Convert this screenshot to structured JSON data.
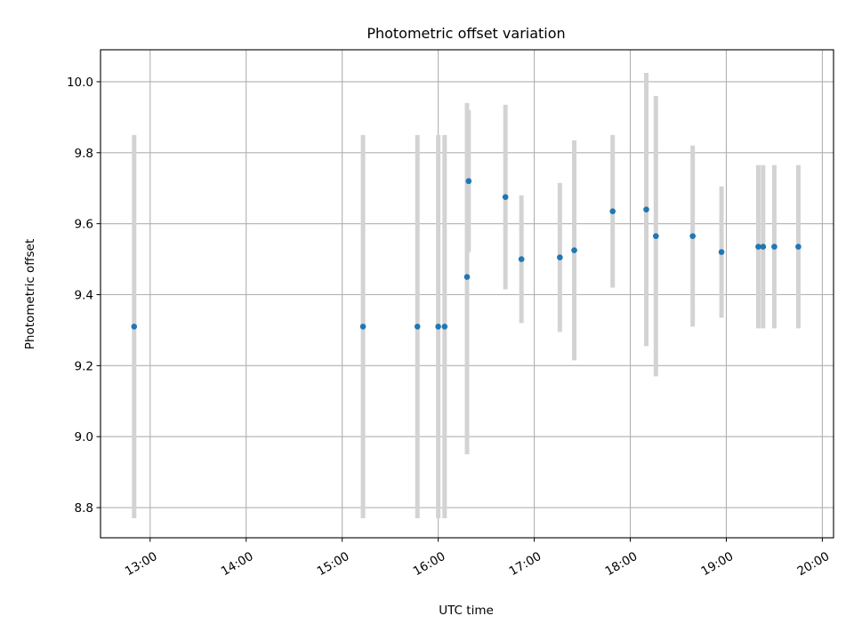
{
  "chart_data": {
    "type": "scatter",
    "title": "Photometric offset variation",
    "xlabel": "UTC time",
    "ylabel": "Photometric offset",
    "x_unit": "hours UTC",
    "xlim": [
      "12:29",
      "20:07"
    ],
    "ylim": [
      8.715,
      10.09
    ],
    "x_ticks": [
      "13:00",
      "14:00",
      "15:00",
      "16:00",
      "17:00",
      "18:00",
      "19:00",
      "20:00"
    ],
    "y_ticks": [
      "8.8",
      "9.0",
      "9.2",
      "9.4",
      "9.6",
      "9.8",
      "10.0"
    ],
    "grid": true,
    "marker_color": "#1f77b4",
    "errorbar_color": "#d3d3d3",
    "points": [
      {
        "x": "12:50",
        "y": 9.31,
        "yerr_low": 8.77,
        "yerr_high": 9.85
      },
      {
        "x": "15:13",
        "y": 9.31,
        "yerr_low": 8.77,
        "yerr_high": 9.85
      },
      {
        "x": "15:47",
        "y": 9.31,
        "yerr_low": 8.77,
        "yerr_high": 9.85
      },
      {
        "x": "16:00",
        "y": 9.31,
        "yerr_low": 8.77,
        "yerr_high": 9.85
      },
      {
        "x": "16:04",
        "y": 9.31,
        "yerr_low": 8.77,
        "yerr_high": 9.85
      },
      {
        "x": "16:18",
        "y": 9.45,
        "yerr_low": 8.95,
        "yerr_high": 9.94
      },
      {
        "x": "16:19",
        "y": 9.72,
        "yerr_low": 9.52,
        "yerr_high": 9.92
      },
      {
        "x": "16:42",
        "y": 9.675,
        "yerr_low": 9.415,
        "yerr_high": 9.935
      },
      {
        "x": "16:52",
        "y": 9.5,
        "yerr_low": 9.32,
        "yerr_high": 9.68
      },
      {
        "x": "17:16",
        "y": 9.505,
        "yerr_low": 9.295,
        "yerr_high": 9.715
      },
      {
        "x": "17:25",
        "y": 9.525,
        "yerr_low": 9.215,
        "yerr_high": 9.835
      },
      {
        "x": "17:49",
        "y": 9.635,
        "yerr_low": 9.42,
        "yerr_high": 9.85
      },
      {
        "x": "18:10",
        "y": 9.64,
        "yerr_low": 9.255,
        "yerr_high": 10.025
      },
      {
        "x": "18:16",
        "y": 9.565,
        "yerr_low": 9.17,
        "yerr_high": 9.96
      },
      {
        "x": "18:39",
        "y": 9.565,
        "yerr_low": 9.31,
        "yerr_high": 9.82
      },
      {
        "x": "18:57",
        "y": 9.52,
        "yerr_low": 9.335,
        "yerr_high": 9.705
      },
      {
        "x": "19:20",
        "y": 9.535,
        "yerr_low": 9.305,
        "yerr_high": 9.765
      },
      {
        "x": "19:23",
        "y": 9.535,
        "yerr_low": 9.305,
        "yerr_high": 9.765
      },
      {
        "x": "19:30",
        "y": 9.535,
        "yerr_low": 9.305,
        "yerr_high": 9.765
      },
      {
        "x": "19:45",
        "y": 9.535,
        "yerr_low": 9.305,
        "yerr_high": 9.765
      }
    ]
  }
}
